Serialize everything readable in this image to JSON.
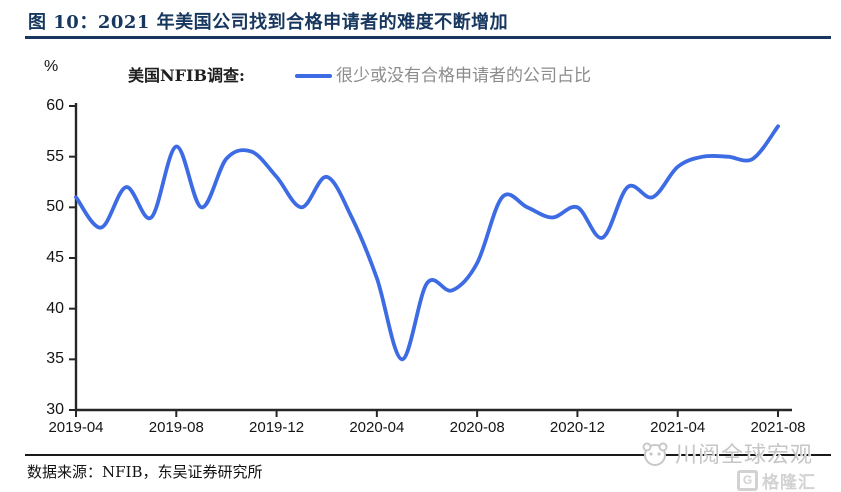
{
  "header": {
    "title": "图 10：2021 年美国公司找到合格申请者的难度不断增加"
  },
  "legend": {
    "survey_label": "美国NFIB调查:",
    "series_label": "很少或没有合格申请者的公司占比"
  },
  "chart_data": {
    "type": "line",
    "title": "美国NFIB调查: 很少或没有合格申请者的公司占比",
    "x": [
      "2019-04",
      "2019-05",
      "2019-06",
      "2019-07",
      "2019-08",
      "2019-09",
      "2019-10",
      "2019-11",
      "2019-12",
      "2020-01",
      "2020-02",
      "2020-03",
      "2020-04",
      "2020-05",
      "2020-06",
      "2020-07",
      "2020-08",
      "2020-09",
      "2020-10",
      "2020-11",
      "2020-12",
      "2021-01",
      "2021-02",
      "2021-03",
      "2021-04",
      "2021-05",
      "2021-06",
      "2021-07",
      "2021-08"
    ],
    "series": [
      {
        "name": "很少或没有合格申请者的公司占比",
        "values": [
          51,
          48,
          52,
          49,
          56,
          50,
          54.8,
          55.5,
          53,
          50,
          53,
          49,
          43,
          35,
          42.5,
          41.8,
          44.5,
          51,
          50,
          49,
          50,
          47,
          52,
          51,
          54,
          55,
          55,
          54.8,
          58
        ]
      }
    ],
    "x_tick_labels": [
      "2019-04",
      "2019-08",
      "2019-12",
      "2020-04",
      "2020-08",
      "2020-12",
      "2021-04",
      "2021-08"
    ],
    "y_ticks": [
      60,
      55,
      50,
      45,
      40,
      35,
      30
    ],
    "ylim": [
      30,
      60
    ],
    "ylabel": "%",
    "grid": false,
    "legend_position": "top"
  },
  "footer": {
    "source": "数据来源：NFIB，东吴证券研究所"
  },
  "watermark": {
    "text": "川阅全球宏观",
    "logo_letter": "G",
    "logo_text": "格隆汇"
  },
  "colors": {
    "line": "#3D6BE4",
    "title": "#17375E",
    "axis": "#262626",
    "legend_series_text": "#8C8C8C",
    "watermark": "#C8C8C8"
  }
}
